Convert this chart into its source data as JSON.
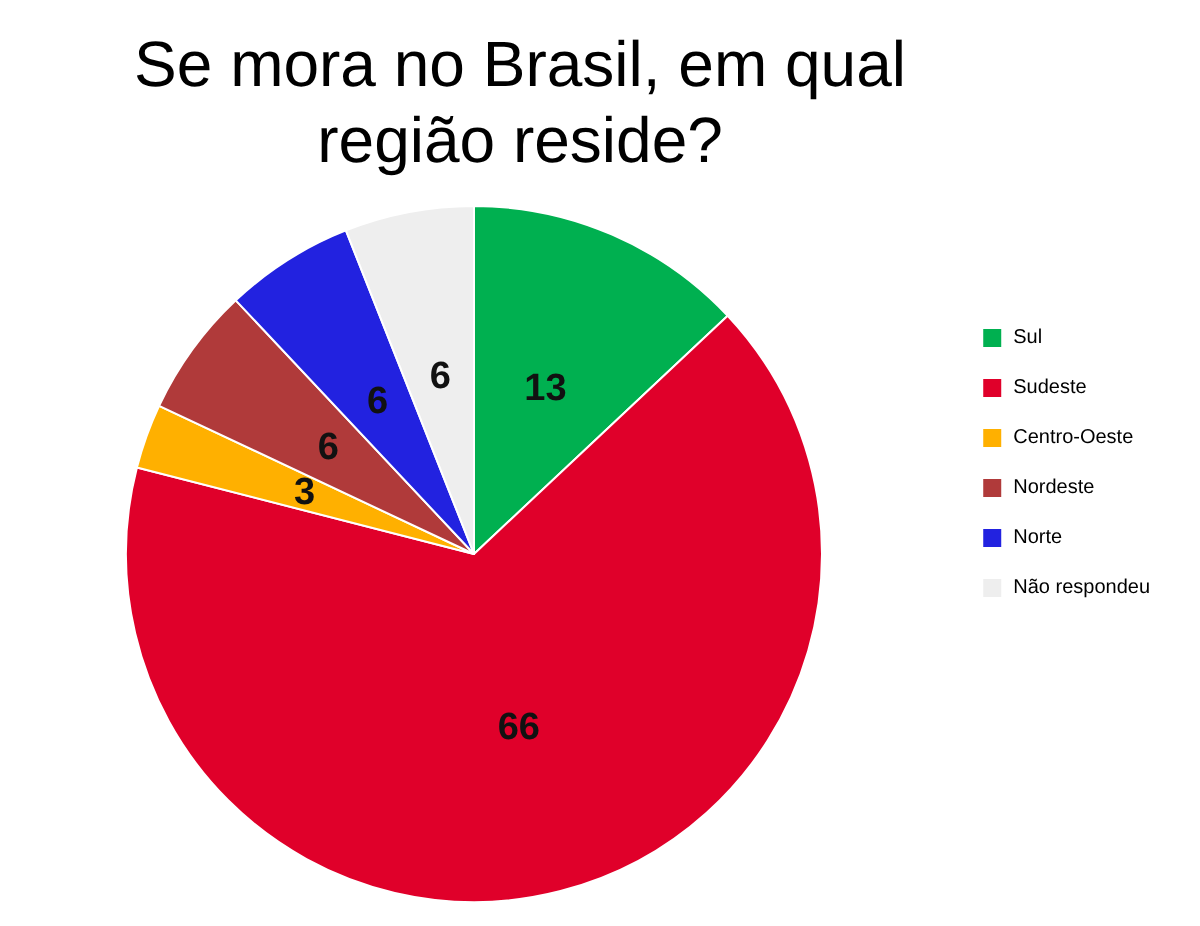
{
  "chart_data": {
    "type": "pie",
    "title": "Se mora no Brasil, em qual\nregião reside?",
    "categories": [
      "Sul",
      "Sudeste",
      "Centro-Oeste",
      "Nordeste",
      "Norte",
      "Não respondeu"
    ],
    "values": [
      13,
      66,
      3,
      6,
      6,
      6
    ],
    "colors": [
      "#00b050",
      "#e0002a",
      "#ffb000",
      "#b03a3a",
      "#2222e0",
      "#eeeeee"
    ],
    "data_labels": true,
    "legend": "right"
  }
}
